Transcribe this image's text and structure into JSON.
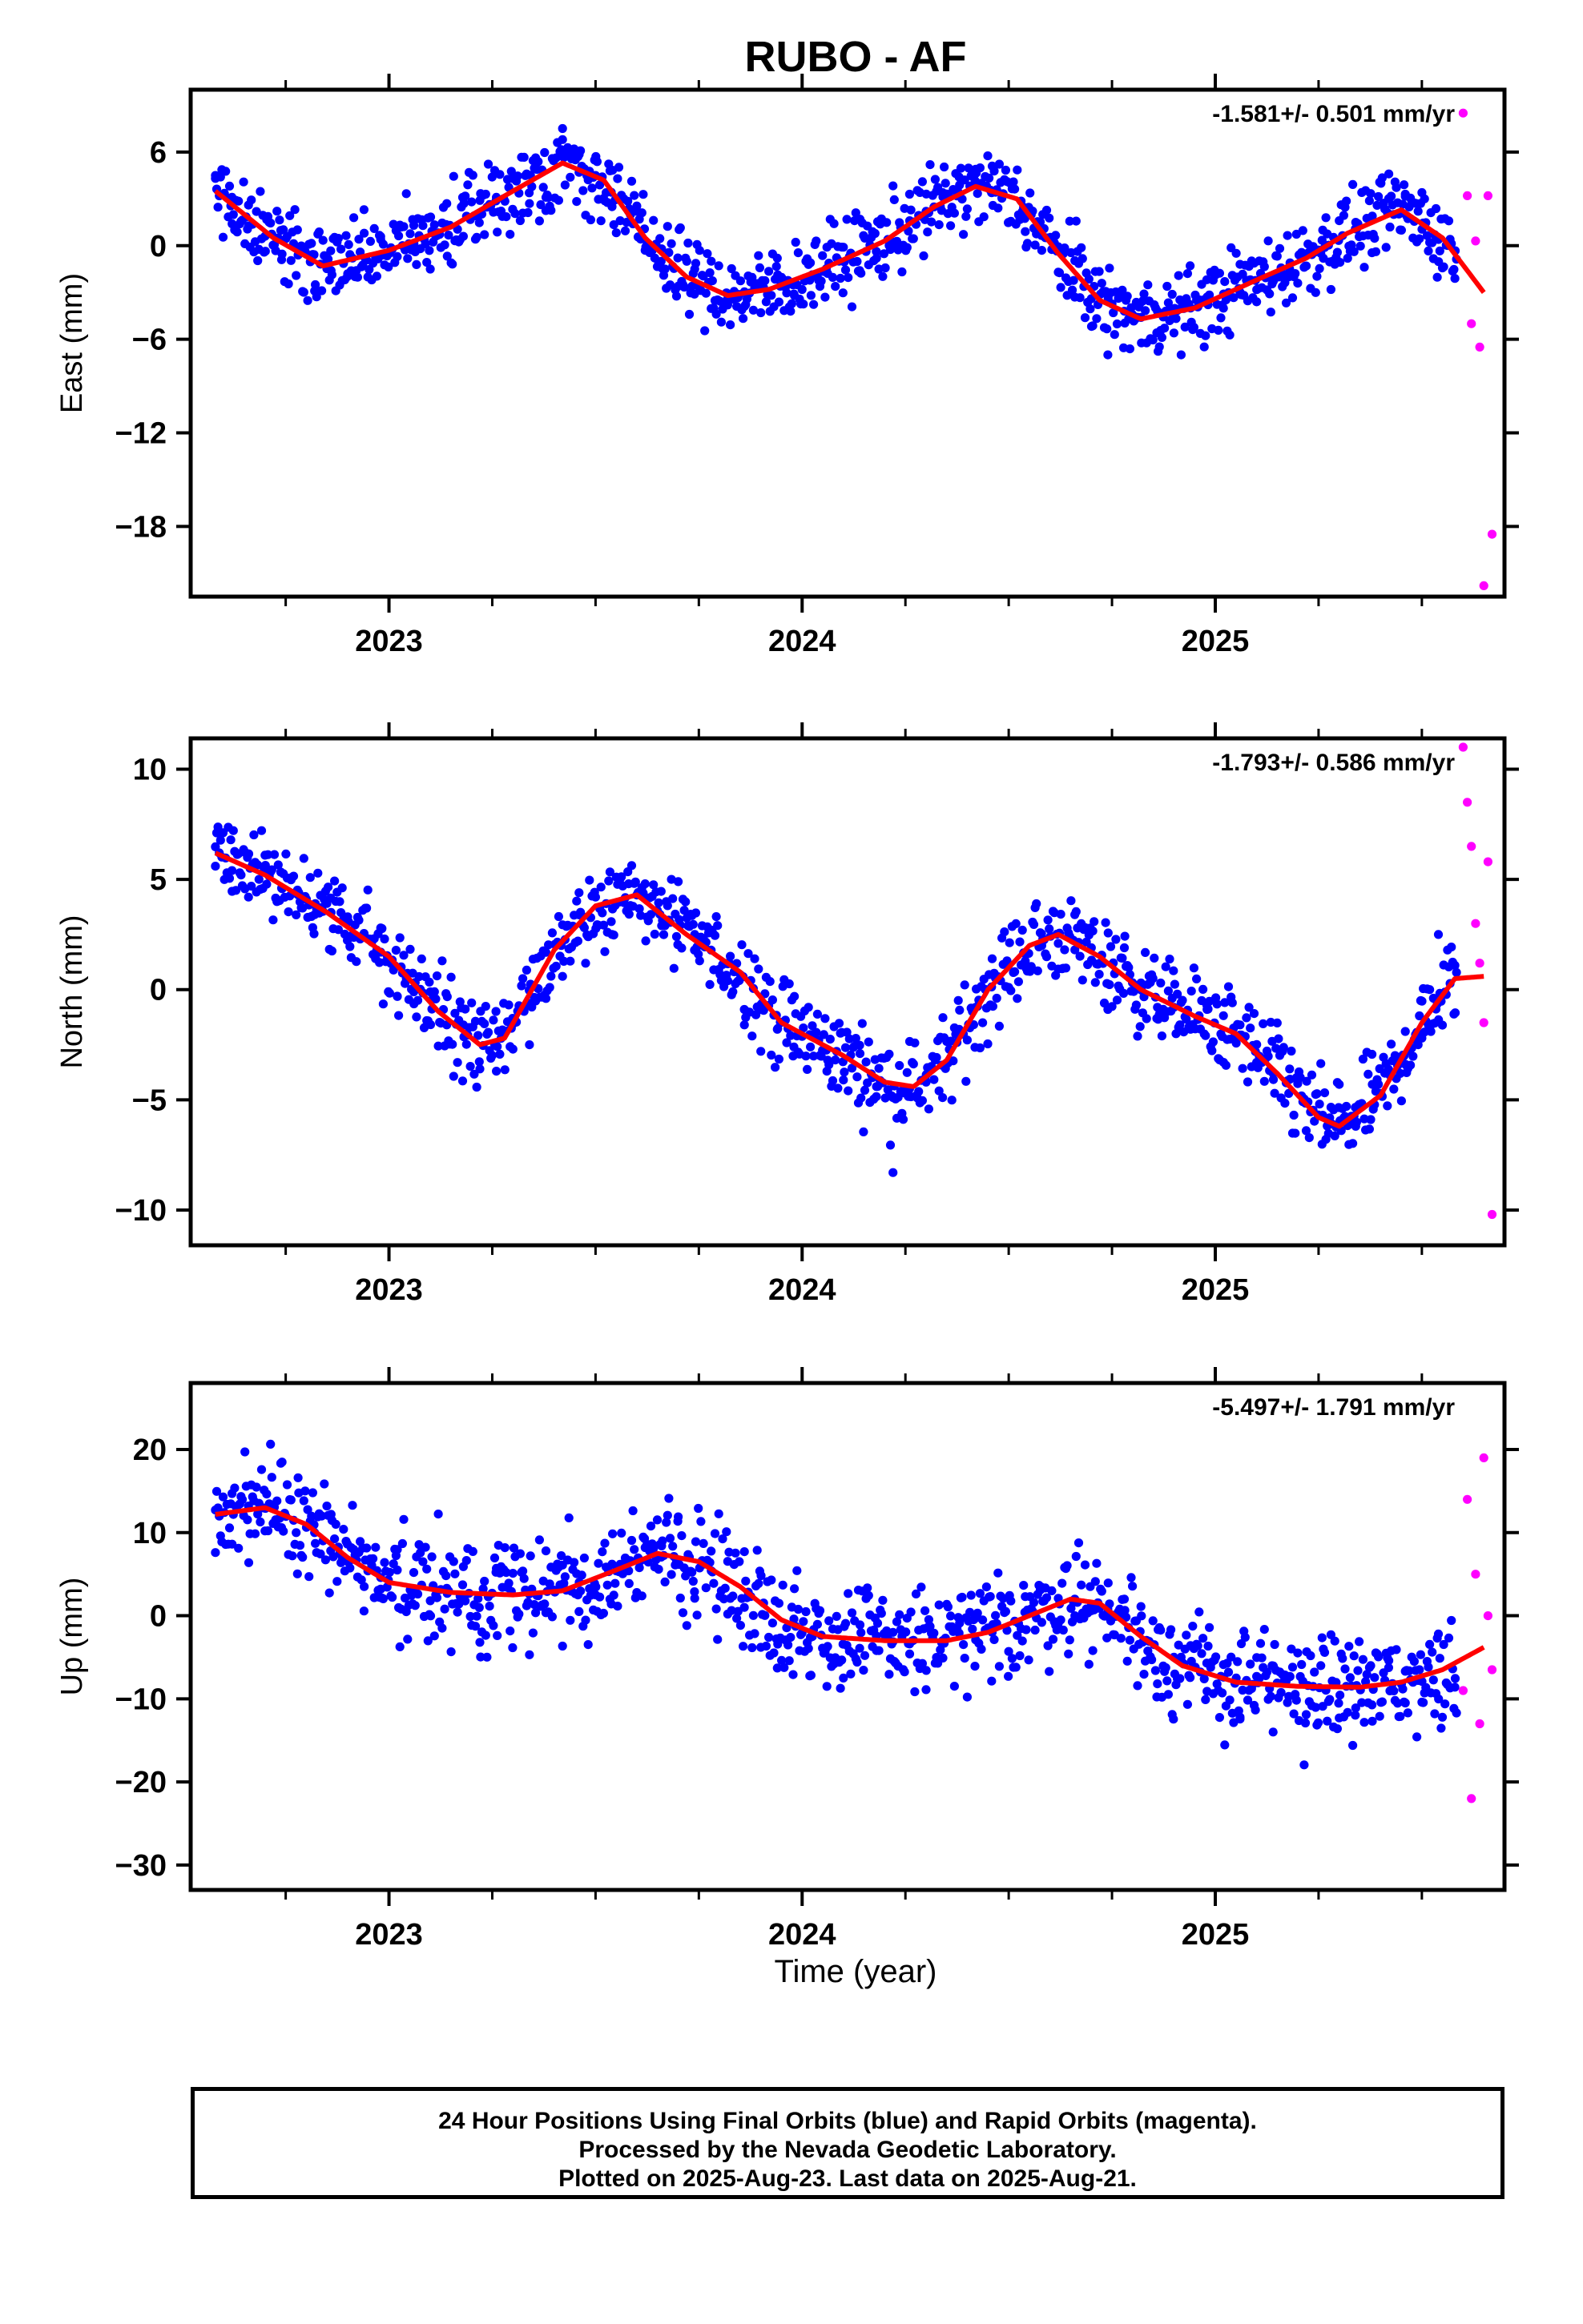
{
  "title": "RUBO - AF",
  "x_axis_title": "Time (year)",
  "footer": {
    "line1": "24 Hour Positions Using Final Orbits (blue) and Rapid Orbits (magenta).",
    "line2": "Processed by the Nevada Geodetic Laboratory.",
    "line3": "Plotted on 2025-Aug-23. Last data on 2025-Aug-21."
  },
  "colors": {
    "final": "#0000ff",
    "rapid": "#ff00ff",
    "model": "#ff0000"
  },
  "chart_data": [
    {
      "type": "scatter",
      "ylabel": "East (mm)",
      "rate": "-1.581+/- 0.501 mm/yr",
      "xlim": [
        2022.52,
        2025.7
      ],
      "ylim": [
        -22.5,
        10
      ],
      "yticks": [
        6,
        0,
        -6,
        -12,
        -18
      ],
      "ytick_labels": [
        "6",
        "0",
        "−6",
        "−12",
        "−18"
      ],
      "xticks": [
        2023,
        2024,
        2025
      ],
      "xtick_labels": [
        "2023",
        "2024",
        "2025"
      ],
      "grid": false,
      "series": [
        {
          "role": "final",
          "note": "Daily final-orbit positions (blue)",
          "trend": [
            [
              2022.58,
              3.5
            ],
            [
              2022.72,
              0.5
            ],
            [
              2022.84,
              -1.3
            ],
            [
              2023.0,
              -0.3
            ],
            [
              2023.15,
              1.2
            ],
            [
              2023.3,
              3.5
            ],
            [
              2023.42,
              5.3
            ],
            [
              2023.52,
              4.2
            ],
            [
              2023.62,
              0.5
            ],
            [
              2023.72,
              -2.0
            ],
            [
              2023.82,
              -3.2
            ],
            [
              2023.92,
              -2.8
            ],
            [
              2024.05,
              -1.5
            ],
            [
              2024.2,
              0.3
            ],
            [
              2024.32,
              2.5
            ],
            [
              2024.42,
              3.8
            ],
            [
              2024.52,
              3.0
            ],
            [
              2024.62,
              -0.5
            ],
            [
              2024.72,
              -3.5
            ],
            [
              2024.82,
              -4.7
            ],
            [
              2024.95,
              -4.0
            ],
            [
              2025.1,
              -2.2
            ],
            [
              2025.22,
              -0.8
            ],
            [
              2025.32,
              0.8
            ],
            [
              2025.45,
              2.3
            ],
            [
              2025.55,
              0.5
            ],
            [
              2025.65,
              -3.0
            ]
          ],
          "spread": 1.8,
          "x": [
            2022.58,
            2022.62,
            2022.66,
            2022.7,
            2022.74,
            2022.78,
            2022.82,
            2022.86,
            2022.9,
            2022.94,
            2022.98,
            2023.02,
            2023.06,
            2023.1,
            2023.14,
            2023.18,
            2023.22,
            2023.26,
            2023.3,
            2023.34,
            2023.38,
            2023.42,
            2023.46,
            2023.5,
            2023.54,
            2023.58,
            2023.62,
            2023.66,
            2023.7,
            2023.74,
            2023.78,
            2023.82,
            2023.86,
            2023.9,
            2023.94,
            2023.98,
            2024.02,
            2024.06,
            2024.1,
            2024.14,
            2024.18,
            2024.22,
            2024.26,
            2024.3,
            2024.34,
            2024.38,
            2024.42,
            2024.46,
            2024.5,
            2024.54,
            2024.58,
            2024.62,
            2024.66,
            2024.7,
            2024.74,
            2024.78,
            2024.82,
            2024.86,
            2024.9,
            2024.94,
            2024.98,
            2025.02,
            2025.06,
            2025.1,
            2025.14,
            2025.18,
            2025.22,
            2025.26,
            2025.3,
            2025.34,
            2025.38,
            2025.42,
            2025.46,
            2025.5,
            2025.54,
            2025.58
          ],
          "y": [
            4.5,
            3.1,
            2.6,
            0.6,
            -0.9,
            -0.6,
            -2.9,
            -1.6,
            -1.8,
            0.8,
            0.4,
            -0.7,
            1.3,
            -1.5,
            2.7,
            0.6,
            2.9,
            3.1,
            4.3,
            2.7,
            3.1,
            6.8,
            4.7,
            4.5,
            2.5,
            2.2,
            -0.3,
            -0.2,
            -2.6,
            -1.5,
            -1.0,
            -3.8,
            -3.9,
            -4.3,
            -0.8,
            -3.1,
            -1.1,
            -0.1,
            -0.1,
            1.7,
            -0.8,
            0.1,
            3.3,
            2.2,
            3.4,
            4.4,
            4.9,
            5.1,
            1.5,
            0.9,
            -0.3,
            -1.7,
            -3.3,
            -3.4,
            -7.0,
            -4.2,
            -4.6,
            -4.2,
            -5.6,
            -4.0,
            -3.3,
            -3.1,
            -1.2,
            -3.6,
            -2.1,
            -1.5,
            -1.3,
            1.0,
            1.6,
            1.5,
            1.9,
            4.6,
            3.3,
            3.4,
            0.4,
            -2.1
          ]
        },
        {
          "role": "rapid",
          "note": "Rapid-orbit positions (magenta)",
          "x": [
            2025.6,
            2025.61,
            2025.62,
            2025.63,
            2025.64,
            2025.65,
            2025.66,
            2025.67
          ],
          "y": [
            8.5,
            3.2,
            -5.0,
            0.3,
            -6.5,
            -21.8,
            3.2,
            -18.5
          ]
        }
      ]
    },
    {
      "type": "scatter",
      "ylabel": "North (mm)",
      "rate": "-1.793+/- 0.586 mm/yr",
      "xlim": [
        2022.52,
        2025.7
      ],
      "ylim": [
        -11.6,
        11.4
      ],
      "yticks": [
        10,
        5,
        0,
        -5,
        -10
      ],
      "ytick_labels": [
        "10",
        "5",
        "0",
        "−5",
        "−10"
      ],
      "xticks": [
        2023,
        2024,
        2025
      ],
      "xtick_labels": [
        "2023",
        "2024",
        "2025"
      ],
      "grid": false,
      "series": [
        {
          "role": "final",
          "note": "Daily final-orbit positions (blue)",
          "trend": [
            [
              2022.58,
              6.2
            ],
            [
              2022.7,
              5.2
            ],
            [
              2022.85,
              3.5
            ],
            [
              2023.0,
              1.5
            ],
            [
              2023.12,
              -1.0
            ],
            [
              2023.22,
              -2.5
            ],
            [
              2023.28,
              -2.2
            ],
            [
              2023.4,
              1.8
            ],
            [
              2023.5,
              3.8
            ],
            [
              2023.6,
              4.3
            ],
            [
              2023.72,
              2.5
            ],
            [
              2023.85,
              0.8
            ],
            [
              2023.95,
              -1.5
            ],
            [
              2024.1,
              -3.0
            ],
            [
              2024.2,
              -4.2
            ],
            [
              2024.27,
              -4.4
            ],
            [
              2024.35,
              -3.2
            ],
            [
              2024.45,
              0.0
            ],
            [
              2024.55,
              2.0
            ],
            [
              2024.62,
              2.5
            ],
            [
              2024.72,
              1.5
            ],
            [
              2024.82,
              0.0
            ],
            [
              2024.95,
              -1.2
            ],
            [
              2025.05,
              -2.0
            ],
            [
              2025.15,
              -3.8
            ],
            [
              2025.25,
              -5.8
            ],
            [
              2025.3,
              -6.2
            ],
            [
              2025.4,
              -4.8
            ],
            [
              2025.5,
              -1.5
            ],
            [
              2025.58,
              0.5
            ],
            [
              2025.65,
              0.6
            ]
          ],
          "spread": 1.4,
          "x": [
            2022.58,
            2022.62,
            2022.66,
            2022.7,
            2022.74,
            2022.78,
            2022.82,
            2022.86,
            2022.9,
            2022.94,
            2022.98,
            2023.02,
            2023.06,
            2023.1,
            2023.14,
            2023.18,
            2023.22,
            2023.26,
            2023.3,
            2023.34,
            2023.38,
            2023.42,
            2023.46,
            2023.5,
            2023.54,
            2023.58,
            2023.62,
            2023.66,
            2023.7,
            2023.74,
            2023.78,
            2023.82,
            2023.86,
            2023.9,
            2023.94,
            2023.98,
            2024.02,
            2024.06,
            2024.1,
            2024.14,
            2024.18,
            2024.22,
            2024.26,
            2024.3,
            2024.34,
            2024.38,
            2024.42,
            2024.46,
            2024.5,
            2024.54,
            2024.58,
            2024.62,
            2024.66,
            2024.7,
            2024.74,
            2024.78,
            2024.82,
            2024.86,
            2024.9,
            2024.94,
            2024.98,
            2025.02,
            2025.06,
            2025.1,
            2025.14,
            2025.18,
            2025.22,
            2025.26,
            2025.3,
            2025.34,
            2025.38,
            2025.42,
            2025.46,
            2025.5,
            2025.54,
            2025.58
          ],
          "y": [
            5.6,
            5.4,
            4.2,
            6.1,
            4.6,
            4.3,
            3.4,
            3.5,
            3.3,
            2.5,
            1.7,
            -0.3,
            -0.1,
            -0.1,
            -1.6,
            -1.6,
            -3.6,
            -3.7,
            -2.7,
            -2.5,
            -0.4,
            0.6,
            4.4,
            4.2,
            2.5,
            4.8,
            4.8,
            2.9,
            4.9,
            2.5,
            2.7,
            0.4,
            -0.9,
            -2.8,
            -1.8,
            -2.6,
            -2.6,
            -3.7,
            -4.1,
            -2.9,
            -4.4,
            -8.3,
            -4.5,
            -4.2,
            -4.9,
            -1.8,
            -0.8,
            1.4,
            0.1,
            1.3,
            2.0,
            2.1,
            3.4,
            1.9,
            -0.9,
            1.9,
            0.3,
            -0.8,
            -0.8,
            -1.8,
            -0.9,
            -3.3,
            -1.6,
            -3.3,
            -3.8,
            -3.6,
            -6.4,
            -5.7,
            -4.3,
            -6.2,
            -4.3,
            -3.7,
            -1.9,
            -2.2,
            2.5,
            1.1
          ]
        },
        {
          "role": "rapid",
          "note": "Rapid-orbit positions (magenta)",
          "x": [
            2025.6,
            2025.61,
            2025.62,
            2025.63,
            2025.64,
            2025.65,
            2025.66,
            2025.67
          ],
          "y": [
            11.0,
            8.5,
            6.5,
            3.0,
            1.2,
            -1.5,
            5.8,
            -10.2
          ]
        }
      ]
    },
    {
      "type": "scatter",
      "ylabel": "Up (mm)",
      "rate": "-5.497+/- 1.791 mm/yr",
      "xlim": [
        2022.52,
        2025.7
      ],
      "ylim": [
        -33,
        28
      ],
      "yticks": [
        20,
        10,
        0,
        -10,
        -20,
        -30
      ],
      "ytick_labels": [
        "20",
        "10",
        "0",
        "−10",
        "−20",
        "−30"
      ],
      "xticks": [
        2023,
        2024,
        2025
      ],
      "xtick_labels": [
        "2023",
        "2024",
        "2025"
      ],
      "grid": false,
      "series": [
        {
          "role": "final",
          "note": "Daily final-orbit positions (blue)",
          "trend": [
            [
              2022.58,
              12.2
            ],
            [
              2022.7,
              13.0
            ],
            [
              2022.8,
              11.0
            ],
            [
              2022.9,
              7.0
            ],
            [
              2023.0,
              4.0
            ],
            [
              2023.15,
              2.8
            ],
            [
              2023.3,
              2.5
            ],
            [
              2023.42,
              3.0
            ],
            [
              2023.55,
              5.5
            ],
            [
              2023.65,
              7.5
            ],
            [
              2023.75,
              6.5
            ],
            [
              2023.85,
              3.5
            ],
            [
              2023.95,
              -0.5
            ],
            [
              2024.05,
              -2.5
            ],
            [
              2024.2,
              -3.0
            ],
            [
              2024.35,
              -3.0
            ],
            [
              2024.45,
              -2.0
            ],
            [
              2024.55,
              0.0
            ],
            [
              2024.65,
              2.0
            ],
            [
              2024.72,
              1.5
            ],
            [
              2024.82,
              -2.5
            ],
            [
              2024.92,
              -6.0
            ],
            [
              2025.05,
              -8.0
            ],
            [
              2025.2,
              -8.5
            ],
            [
              2025.35,
              -8.6
            ],
            [
              2025.45,
              -8.0
            ],
            [
              2025.55,
              -6.5
            ],
            [
              2025.65,
              -3.8
            ]
          ],
          "spread": 4.5,
          "x": [
            2022.58,
            2022.62,
            2022.66,
            2022.7,
            2022.74,
            2022.78,
            2022.82,
            2022.86,
            2022.9,
            2022.94,
            2022.98,
            2023.02,
            2023.06,
            2023.1,
            2023.14,
            2023.18,
            2023.22,
            2023.26,
            2023.3,
            2023.34,
            2023.38,
            2023.42,
            2023.46,
            2023.5,
            2023.54,
            2023.58,
            2023.62,
            2023.66,
            2023.7,
            2023.74,
            2023.78,
            2023.82,
            2023.86,
            2023.9,
            2023.94,
            2023.98,
            2024.02,
            2024.06,
            2024.1,
            2024.14,
            2024.18,
            2024.22,
            2024.26,
            2024.3,
            2024.34,
            2024.38,
            2024.42,
            2024.46,
            2024.5,
            2024.54,
            2024.58,
            2024.62,
            2024.66,
            2024.7,
            2024.74,
            2024.78,
            2024.82,
            2024.86,
            2024.9,
            2024.94,
            2024.98,
            2025.02,
            2025.06,
            2025.1,
            2025.14,
            2025.18,
            2025.22,
            2025.26,
            2025.3,
            2025.34,
            2025.38,
            2025.42,
            2025.46,
            2025.5,
            2025.54,
            2025.58
          ],
          "y": [
            7.6,
            14.7,
            13.2,
            10.2,
            10.6,
            16.6,
            10.0,
            12.2,
            6.5,
            3.5,
            3.2,
            5.5,
            5.2,
            1.8,
            3.3,
            5.9,
            -3.2,
            5.7,
            5.1,
            -4.7,
            7.8,
            6.1,
            0.5,
            2.5,
            6.2,
            5.4,
            8.2,
            8.4,
            11.9,
            2.1,
            5.4,
            0.2,
            1.0,
            -3.8,
            -6.3,
            -0.4,
            -2.6,
            -8.5,
            -7.5,
            -1.1,
            -4.2,
            -2.0,
            -3.4,
            -8.9,
            -3.0,
            -2.1,
            -2.9,
            -2.0,
            -4.3,
            2.3,
            -0.8,
            2.1,
            2.0,
            0.6,
            0.8,
            2.0,
            1.1,
            -8.2,
            -5.0,
            -3.6,
            -9.1,
            -7.4,
            -12.2,
            -7.3,
            -14.0,
            -7.3,
            -11.9,
            -10.9,
            -12.3,
            -11.1,
            -12.7,
            -5.4,
            -10.5,
            -10.4,
            -2.2,
            -8.6
          ]
        },
        {
          "role": "rapid",
          "note": "Rapid-orbit positions (magenta)",
          "x": [
            2025.6,
            2025.61,
            2025.62,
            2025.63,
            2025.64,
            2025.65,
            2025.66,
            2025.67
          ],
          "y": [
            -9.0,
            14.0,
            -22.0,
            5.0,
            -13.0,
            19.0,
            0.0,
            -6.5
          ]
        }
      ]
    }
  ]
}
